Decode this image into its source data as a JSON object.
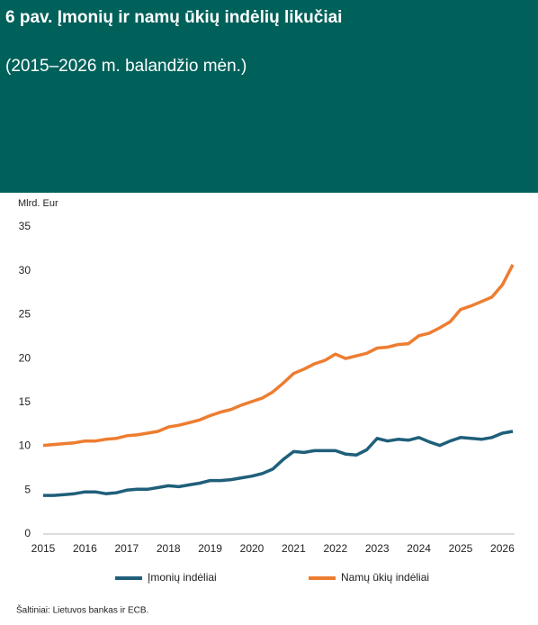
{
  "chart_data": {
    "type": "line",
    "title": "6 pav. Įmonių ir namų ūkių indėlių likučiai",
    "subtitle": "(2015–2026 m. balandžio mėn.)",
    "y_label": "Mlrd. Eur",
    "source": "Šaltiniai: Lietuvos bankas ir ECB.",
    "categories": [
      "2015",
      null,
      null,
      null,
      "2016",
      null,
      null,
      null,
      "2017",
      null,
      null,
      null,
      "2018",
      null,
      null,
      null,
      "2019",
      null,
      null,
      null,
      "2020",
      null,
      null,
      null,
      "2021",
      null,
      null,
      null,
      "2022",
      null,
      null,
      null,
      "2023",
      null,
      null,
      null,
      "2024",
      null,
      null,
      null,
      "2025",
      null,
      null,
      null,
      "2026",
      null
    ],
    "series": [
      {
        "name": "Įmonių indėliai",
        "color": "#1f5f7a",
        "values": [
          4.4,
          4.4,
          4.5,
          4.6,
          4.8,
          4.8,
          4.6,
          4.7,
          5.0,
          5.1,
          5.1,
          5.3,
          5.5,
          5.4,
          5.6,
          5.8,
          6.1,
          6.1,
          6.2,
          6.4,
          6.6,
          6.9,
          7.4,
          8.5,
          9.4,
          9.3,
          9.5,
          9.5,
          9.5,
          9.1,
          9.0,
          9.6,
          10.9,
          10.6,
          10.8,
          10.7,
          11.0,
          10.5,
          10.1,
          10.6,
          11.0,
          10.9,
          10.8,
          11.0,
          11.5,
          11.7
        ]
      },
      {
        "name": "Namų ūkių indėliai",
        "color": "#ed7d31",
        "values": [
          10.1,
          10.2,
          10.3,
          10.4,
          10.6,
          10.6,
          10.8,
          10.9,
          11.2,
          11.3,
          11.5,
          11.7,
          12.2,
          12.4,
          12.7,
          13.0,
          13.5,
          13.9,
          14.2,
          14.7,
          15.1,
          15.5,
          16.2,
          17.2,
          18.3,
          18.8,
          19.4,
          19.8,
          20.5,
          20.0,
          20.3,
          20.6,
          21.2,
          21.3,
          21.6,
          21.7,
          22.6,
          22.9,
          23.5,
          24.2,
          25.6,
          26.0,
          26.5,
          27.0,
          28.4,
          30.7
        ]
      }
    ],
    "ylim": [
      0,
      35
    ],
    "yticks": [
      0,
      5,
      10,
      15,
      20,
      25,
      30,
      35
    ],
    "grid": false,
    "legend": "bottom"
  }
}
